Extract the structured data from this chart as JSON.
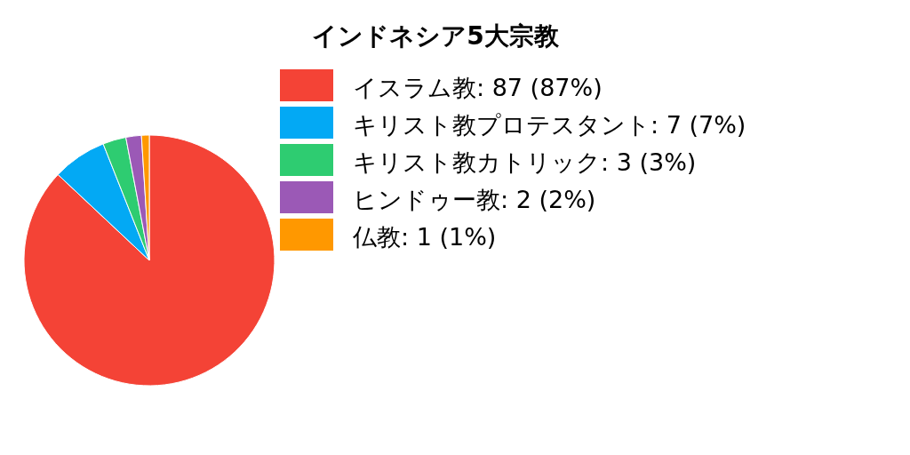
{
  "chart_data": {
    "type": "pie",
    "title": "インドネシア5大宗教",
    "categories": [
      "イスラム教: 87 (87%)",
      "キリスト教プロテスタント: 7 (7%)",
      "キリスト教カトリック: 3 (3%)",
      "ヒンドゥー教: 2 (2%)",
      "仏教: 1 (1%)"
    ],
    "values": [
      87,
      7,
      3,
      2,
      1
    ],
    "colors": [
      "#f44336",
      "#03a9f4",
      "#2ecc71",
      "#9b59b6",
      "#ff9800"
    ],
    "legend": "right"
  }
}
